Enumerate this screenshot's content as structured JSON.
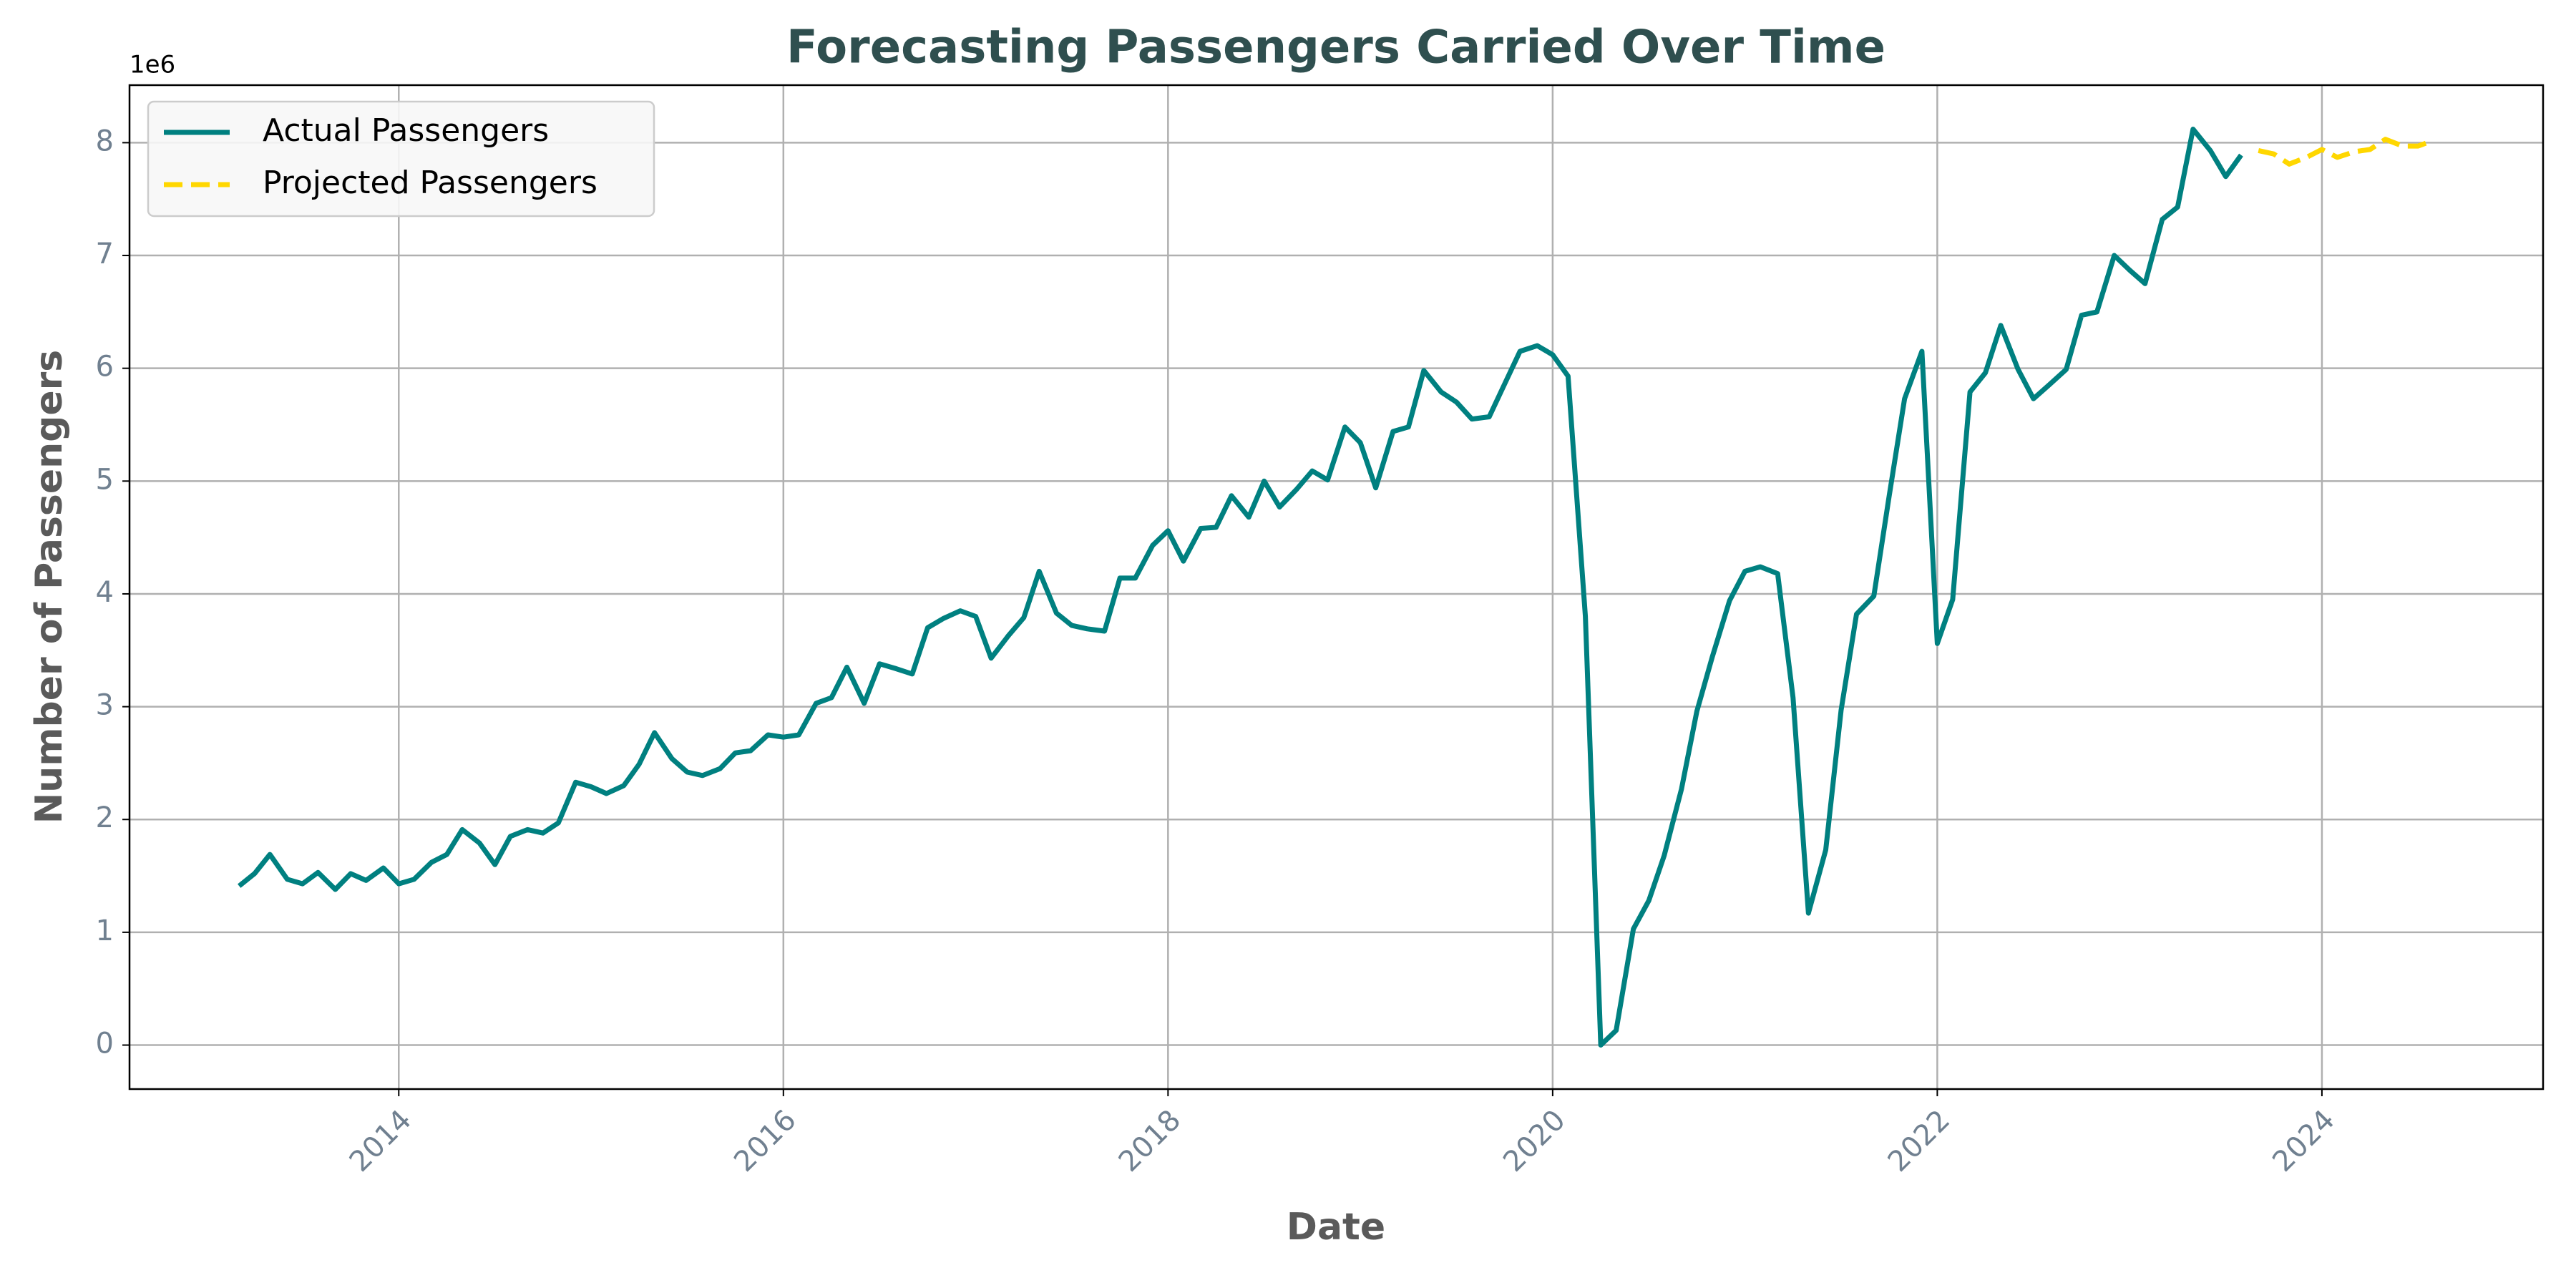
{
  "chart_data": {
    "type": "line",
    "title": "Forecasting Passengers Carried Over Time",
    "x_label": "Date",
    "y_label": "Number of Passengers",
    "y_offset_label": "1e6",
    "xlim": [
      2012.6,
      2025.15
    ],
    "ylim": [
      -0.39,
      8.51
    ],
    "xticks": [
      2014,
      2016,
      2018,
      2020,
      2022,
      2024
    ],
    "yticks": [
      0,
      1,
      2,
      3,
      4,
      5,
      6,
      7,
      8
    ],
    "grid": true,
    "legend": "upper left",
    "series": [
      {
        "name": "Actual Passengers",
        "color": "#008080",
        "dash": false,
        "x": [
          2013.17,
          2013.25,
          2013.33,
          2013.42,
          2013.5,
          2013.58,
          2013.67,
          2013.75,
          2013.83,
          2013.92,
          2014,
          2014.08,
          2014.17,
          2014.25,
          2014.33,
          2014.42,
          2014.5,
          2014.58,
          2014.67,
          2014.75,
          2014.83,
          2014.92,
          2015,
          2015.08,
          2015.17,
          2015.25,
          2015.33,
          2015.42,
          2015.5,
          2015.58,
          2015.67,
          2015.75,
          2015.83,
          2015.92,
          2016,
          2016.08,
          2016.17,
          2016.25,
          2016.33,
          2016.42,
          2016.5,
          2016.58,
          2016.67,
          2016.75,
          2016.83,
          2016.92,
          2017,
          2017.08,
          2017.17,
          2017.25,
          2017.33,
          2017.42,
          2017.5,
          2017.58,
          2017.67,
          2017.75,
          2017.83,
          2017.92,
          2018,
          2018.08,
          2018.17,
          2018.25,
          2018.33,
          2018.42,
          2018.5,
          2018.58,
          2018.67,
          2018.75,
          2018.83,
          2018.92,
          2019,
          2019.08,
          2019.17,
          2019.25,
          2019.33,
          2019.42,
          2019.5,
          2019.58,
          2019.67,
          2019.75,
          2019.83,
          2019.92,
          2020,
          2020.08,
          2020.17,
          2020.25,
          2020.33,
          2020.42,
          2020.5,
          2020.58,
          2020.67,
          2020.75,
          2020.83,
          2020.92,
          2021,
          2021.08,
          2021.17,
          2021.25,
          2021.33,
          2021.42,
          2021.5,
          2021.58,
          2021.67,
          2021.75,
          2021.83,
          2021.92,
          2022,
          2022.08,
          2022.17,
          2022.25,
          2022.33,
          2022.42,
          2022.5,
          2022.58,
          2022.67,
          2022.75,
          2022.83,
          2022.92,
          2023,
          2023.08,
          2023.17,
          2023.25,
          2023.33,
          2023.42,
          2023.5,
          2023.58
        ],
        "values": [
          1.41,
          1.52,
          1.69,
          1.47,
          1.43,
          1.53,
          1.38,
          1.52,
          1.46,
          1.57,
          1.43,
          1.47,
          1.62,
          1.69,
          1.91,
          1.79,
          1.6,
          1.85,
          1.91,
          1.88,
          1.97,
          2.33,
          2.29,
          2.23,
          2.3,
          2.49,
          2.77,
          2.54,
          2.42,
          2.39,
          2.45,
          2.59,
          2.61,
          2.75,
          2.73,
          2.75,
          3.03,
          3.08,
          3.35,
          3.03,
          3.38,
          3.34,
          3.29,
          3.7,
          3.78,
          3.85,
          3.8,
          3.43,
          3.63,
          3.79,
          4.2,
          3.83,
          3.72,
          3.69,
          3.67,
          4.14,
          4.14,
          4.43,
          4.56,
          4.29,
          4.58,
          4.59,
          4.87,
          4.68,
          5.0,
          4.77,
          4.93,
          5.09,
          5.01,
          5.48,
          5.34,
          4.94,
          5.44,
          5.48,
          5.98,
          5.79,
          5.7,
          5.55,
          5.57,
          5.86,
          6.15,
          6.2,
          6.12,
          5.93,
          3.8,
          0.0,
          0.13,
          1.03,
          1.28,
          1.68,
          2.27,
          2.96,
          3.44,
          3.94,
          4.2,
          4.24,
          4.18,
          3.08,
          1.17,
          1.73,
          2.97,
          3.82,
          3.98,
          4.87,
          5.73,
          6.15,
          3.56,
          3.95,
          5.79,
          5.96,
          6.38,
          5.99,
          5.73,
          5.85,
          5.99,
          6.47,
          6.5,
          7.0,
          6.87,
          6.75,
          7.32,
          7.43,
          8.12,
          7.93,
          7.7,
          7.89
        ]
      },
      {
        "name": "Projected Passengers",
        "color": "#FFD700",
        "dash": true,
        "x": [
          2023.67,
          2023.75,
          2023.83,
          2023.92,
          2024,
          2024.08,
          2024.17,
          2024.25,
          2024.33,
          2024.42,
          2024.5,
          2024.58
        ],
        "values": [
          7.93,
          7.9,
          7.81,
          7.87,
          7.94,
          7.87,
          7.92,
          7.94,
          8.03,
          7.97,
          7.97,
          8.02
        ]
      }
    ]
  }
}
